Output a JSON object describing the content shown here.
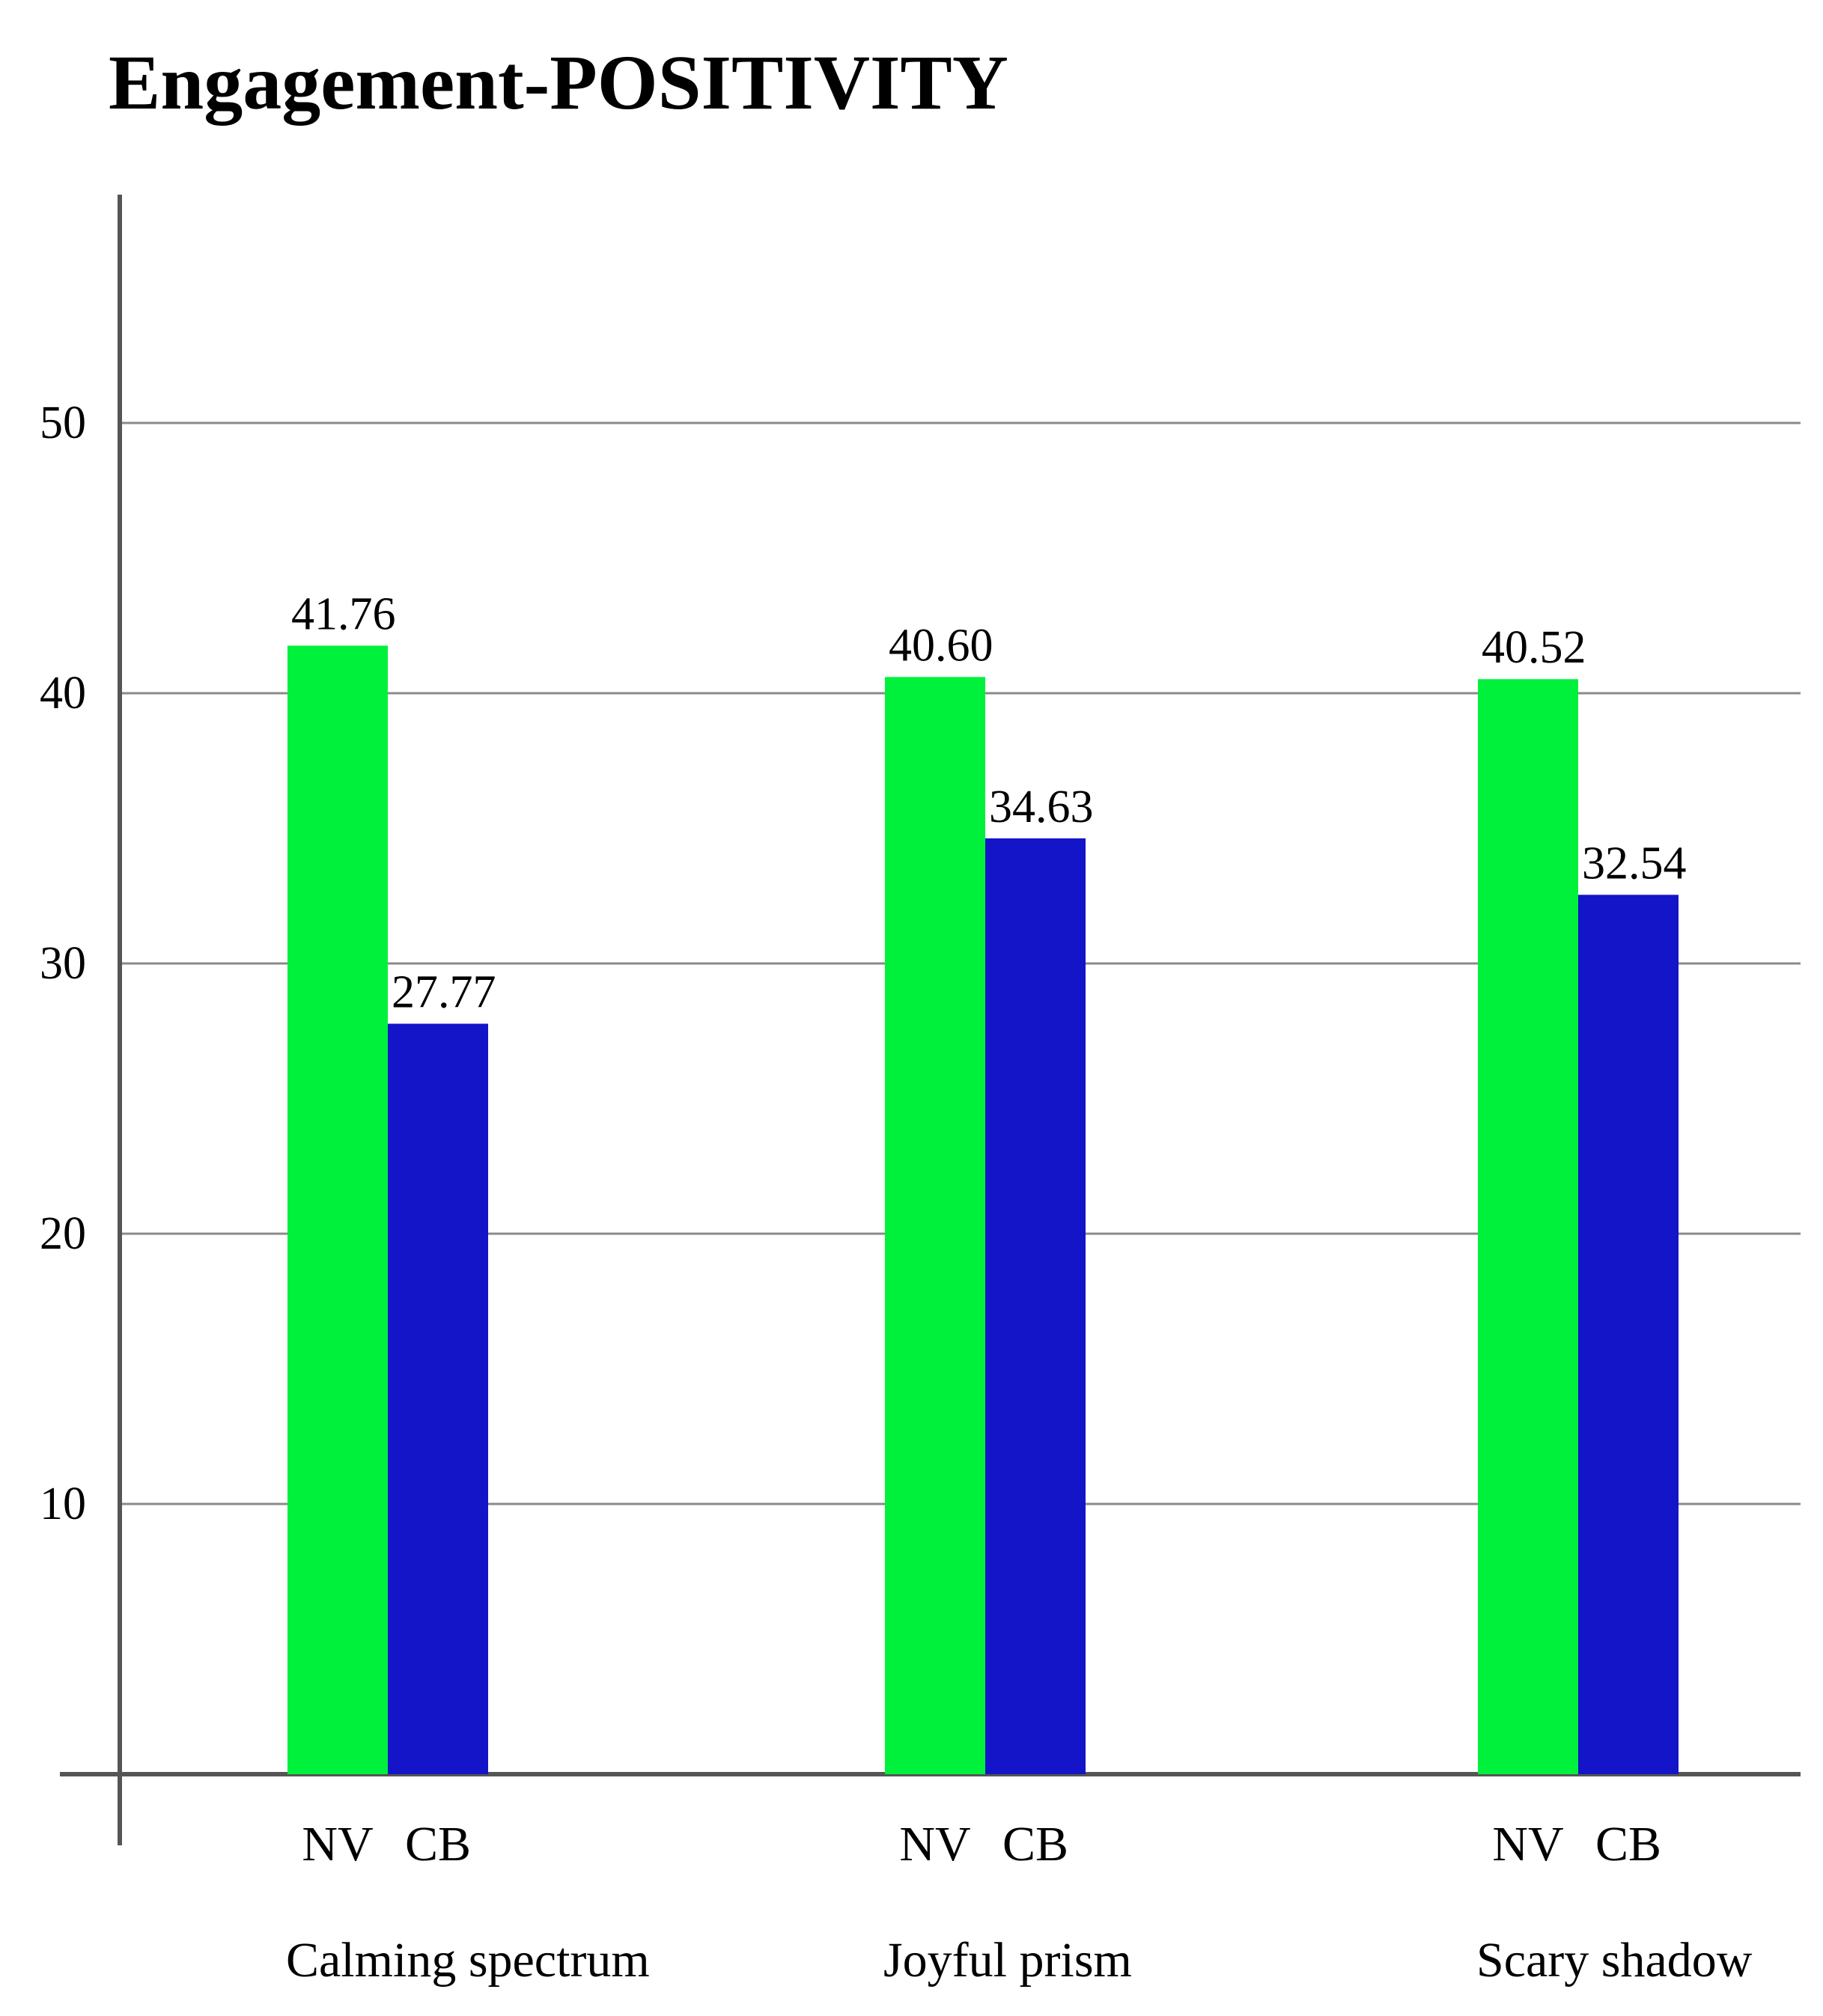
{
  "chart_data": {
    "type": "bar",
    "title": "Engagement-POSITIVITY",
    "xlabel": "",
    "ylabel": "",
    "categories": [
      "Calming spectrum",
      "Joyful prism",
      "Scary shadow"
    ],
    "series": [
      {
        "name": "NV",
        "color": "#00f13c",
        "values": [
          41.76,
          40.6,
          40.52
        ],
        "labels": [
          "41.76",
          "40.60",
          "40.52"
        ]
      },
      {
        "name": "CB",
        "color": "#1414c8",
        "values": [
          27.77,
          34.63,
          32.54
        ],
        "labels": [
          "27.77",
          "34.63",
          "32.54"
        ]
      }
    ],
    "ylim": [
      0,
      60
    ],
    "yticks": [
      10,
      20,
      30,
      40,
      50
    ],
    "grid": true,
    "legend": "none"
  }
}
